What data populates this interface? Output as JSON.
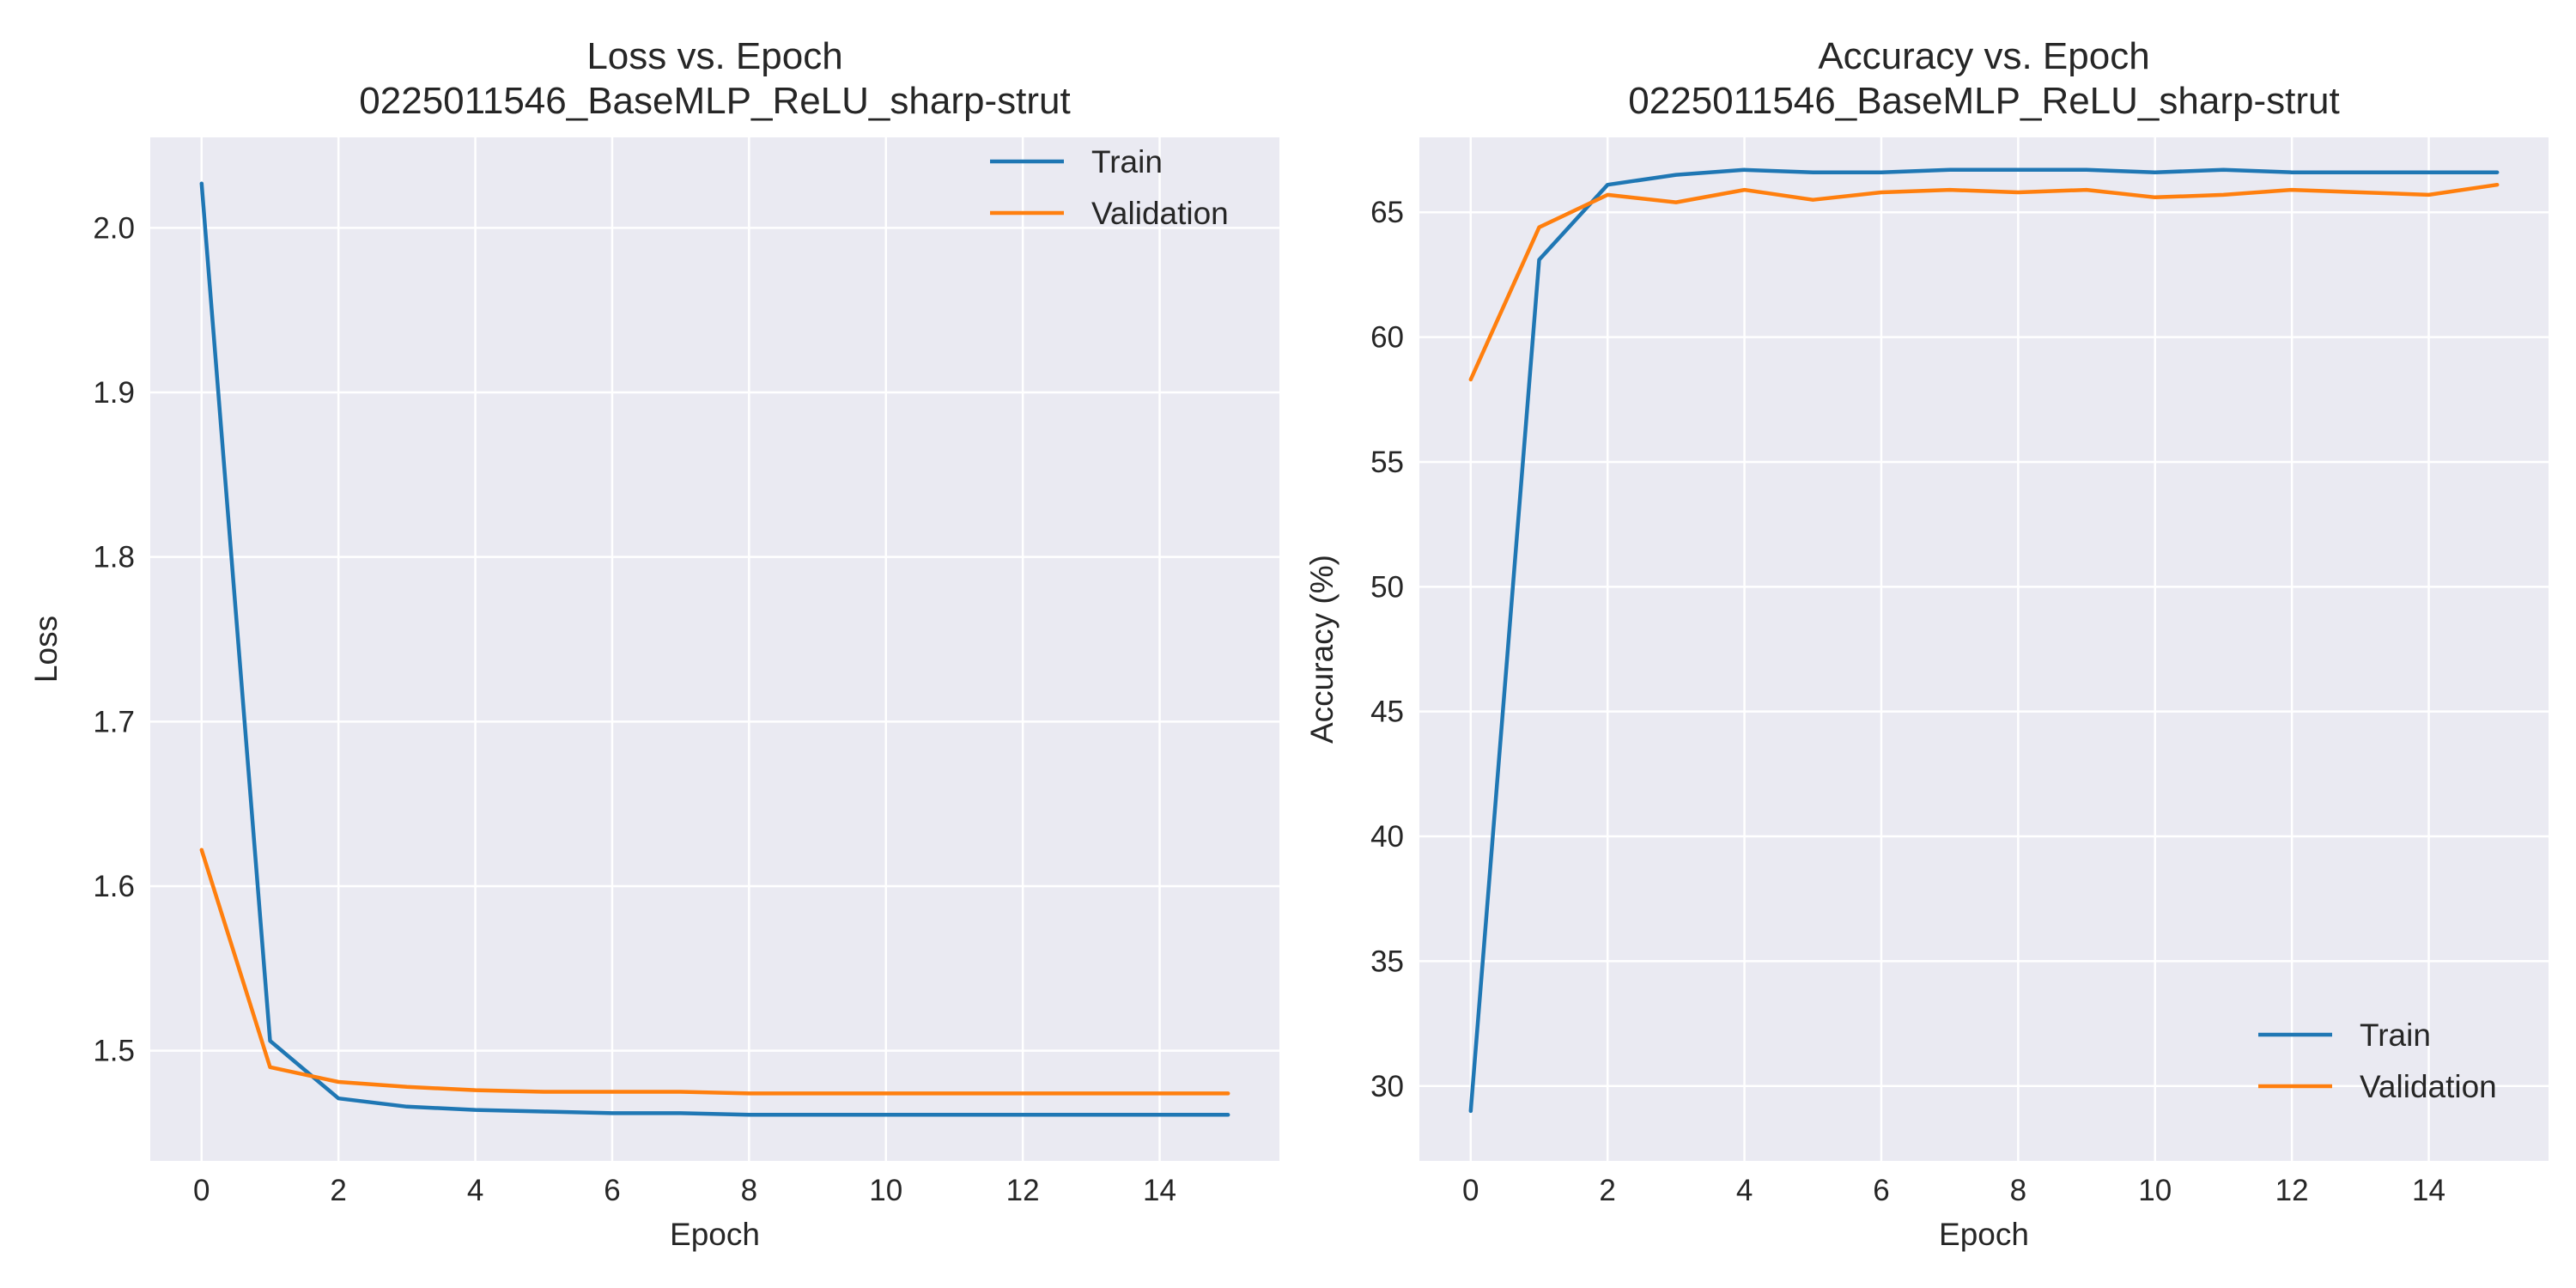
{
  "chart_data": [
    {
      "type": "line",
      "title": "Loss vs. Epoch",
      "subtitle": "0225011546_BaseMLP_ReLU_sharp-strut",
      "xlabel": "Epoch",
      "ylabel": "Loss",
      "xlim": [
        -0.75,
        15.75
      ],
      "ylim": [
        1.433,
        2.055
      ],
      "xticks": [
        0,
        2,
        4,
        6,
        8,
        10,
        12,
        14
      ],
      "yticks": [
        1.5,
        1.6,
        1.7,
        1.8,
        1.9,
        2.0
      ],
      "ytick_labels": [
        "1.5",
        "1.6",
        "1.7",
        "1.8",
        "1.9",
        "2.0"
      ],
      "grid": true,
      "legend_position": "top-right",
      "x": [
        0,
        1,
        2,
        3,
        4,
        5,
        6,
        7,
        8,
        9,
        10,
        11,
        12,
        13,
        14,
        15
      ],
      "series": [
        {
          "name": "Train",
          "color": "#1f77b4",
          "values": [
            2.027,
            1.506,
            1.471,
            1.466,
            1.464,
            1.463,
            1.462,
            1.462,
            1.461,
            1.461,
            1.461,
            1.461,
            1.461,
            1.461,
            1.461,
            1.461
          ]
        },
        {
          "name": "Validation",
          "color": "#ff7f0e",
          "values": [
            1.622,
            1.49,
            1.481,
            1.478,
            1.476,
            1.475,
            1.475,
            1.475,
            1.474,
            1.474,
            1.474,
            1.474,
            1.474,
            1.474,
            1.474,
            1.474
          ]
        }
      ]
    },
    {
      "type": "line",
      "title": "Accuracy vs. Epoch",
      "subtitle": "0225011546_BaseMLP_ReLU_sharp-strut",
      "xlabel": "Epoch",
      "ylabel": "Accuracy (%)",
      "xlim": [
        -0.75,
        15.75
      ],
      "ylim": [
        27.0,
        68.0
      ],
      "xticks": [
        0,
        2,
        4,
        6,
        8,
        10,
        12,
        14
      ],
      "yticks": [
        30,
        35,
        40,
        45,
        50,
        55,
        60,
        65
      ],
      "ytick_labels": [
        "30",
        "35",
        "40",
        "45",
        "50",
        "55",
        "60",
        "65"
      ],
      "grid": true,
      "legend_position": "bottom-right",
      "x": [
        0,
        1,
        2,
        3,
        4,
        5,
        6,
        7,
        8,
        9,
        10,
        11,
        12,
        13,
        14,
        15
      ],
      "series": [
        {
          "name": "Train",
          "color": "#1f77b4",
          "values": [
            29.0,
            63.1,
            66.1,
            66.5,
            66.7,
            66.6,
            66.6,
            66.7,
            66.7,
            66.7,
            66.6,
            66.7,
            66.6,
            66.6,
            66.6,
            66.6
          ]
        },
        {
          "name": "Validation",
          "color": "#ff7f0e",
          "values": [
            58.3,
            64.4,
            65.7,
            65.4,
            65.9,
            65.5,
            65.8,
            65.9,
            65.8,
            65.9,
            65.6,
            65.7,
            65.9,
            65.8,
            65.7,
            66.1
          ]
        }
      ]
    }
  ]
}
